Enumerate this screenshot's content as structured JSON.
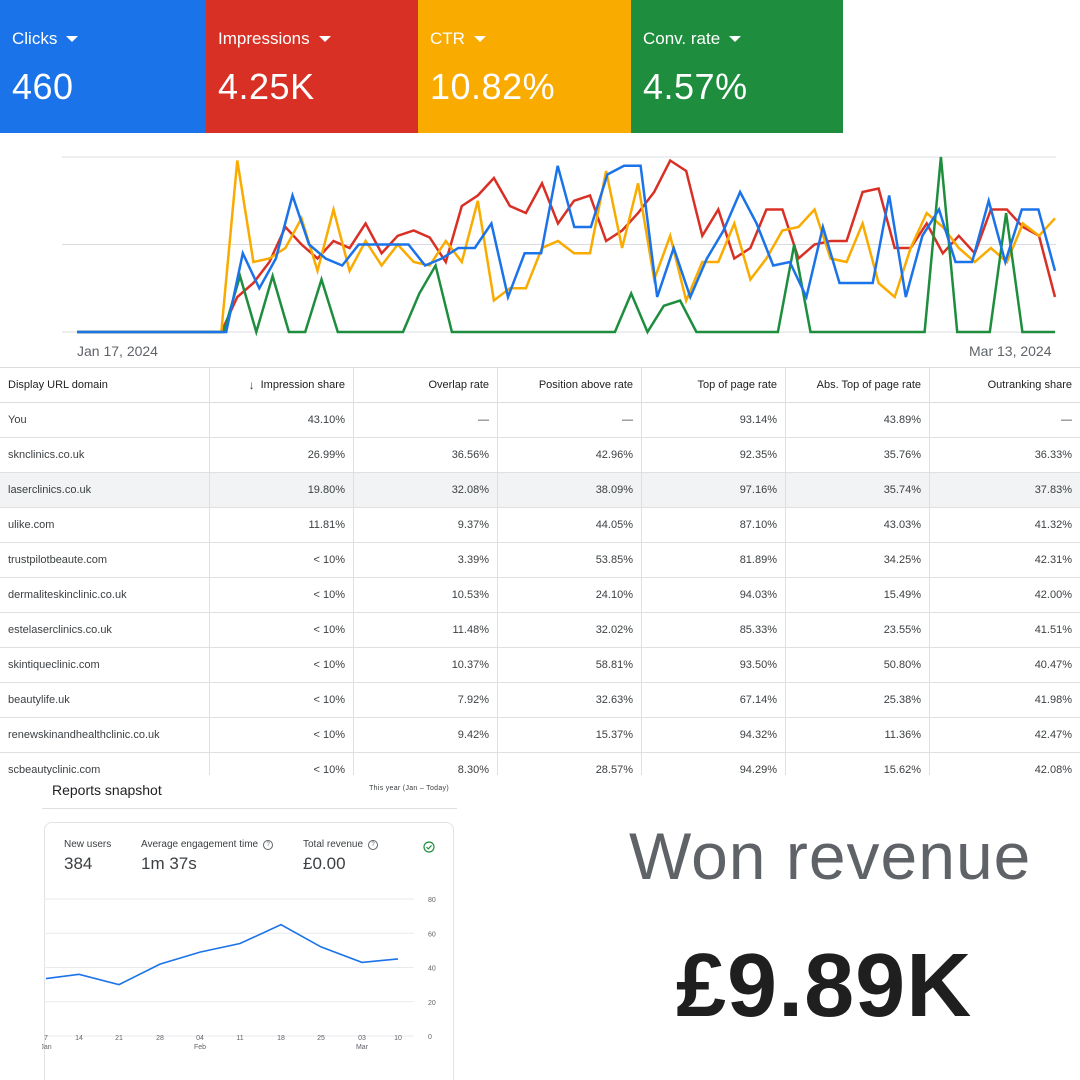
{
  "metrics": [
    {
      "label": "Clicks",
      "value": "460",
      "color": "#1a73e8"
    },
    {
      "label": "Impressions",
      "value": "4.25K",
      "color": "#d93025"
    },
    {
      "label": "CTR",
      "value": "10.82%",
      "color": "#f9ab00"
    },
    {
      "label": "Conv. rate",
      "value": "4.57%",
      "color": "#1e8e3e"
    }
  ],
  "main_chart": {
    "x_start_label": "Jan 17, 2024",
    "x_end_label": "Mar 13, 2024"
  },
  "chart_data": [
    {
      "type": "line",
      "x_start": "Jan 17, 2024",
      "x_end": "Mar 13, 2024",
      "grid": true,
      "ylim": [
        0,
        100
      ],
      "series": [
        {
          "name": "Clicks",
          "color": "#1a73e8",
          "values": [
            0,
            0,
            0,
            0,
            0,
            0,
            0,
            0,
            0,
            0,
            45,
            25,
            42,
            78,
            50,
            42,
            38,
            50,
            50,
            50,
            50,
            38,
            42,
            48,
            48,
            62,
            20,
            45,
            45,
            95,
            60,
            60,
            90,
            95,
            95,
            20,
            48,
            20,
            42,
            58,
            80,
            62,
            38,
            40,
            20,
            60,
            28,
            28,
            28,
            78,
            20,
            55,
            70,
            40,
            40,
            75,
            40,
            70,
            70,
            35
          ]
        },
        {
          "name": "Impressions",
          "color": "#d93025",
          "values": [
            0,
            0,
            0,
            0,
            0,
            0,
            0,
            0,
            0,
            0,
            20,
            28,
            40,
            60,
            50,
            42,
            52,
            48,
            62,
            45,
            55,
            58,
            54,
            40,
            72,
            78,
            88,
            72,
            68,
            85,
            62,
            75,
            78,
            52,
            58,
            68,
            80,
            98,
            92,
            55,
            70,
            42,
            48,
            70,
            70,
            42,
            50,
            52,
            52,
            80,
            82,
            48,
            48,
            62,
            45,
            55,
            45,
            70,
            70,
            60,
            55,
            20
          ]
        },
        {
          "name": "CTR",
          "color": "#f9ab00",
          "values": [
            0,
            0,
            0,
            0,
            0,
            0,
            0,
            0,
            0,
            0,
            98,
            40,
            42,
            48,
            65,
            35,
            70,
            35,
            52,
            38,
            50,
            40,
            38,
            52,
            40,
            75,
            18,
            25,
            25,
            48,
            52,
            45,
            45,
            92,
            48,
            85,
            30,
            55,
            18,
            40,
            40,
            62,
            30,
            42,
            58,
            60,
            70,
            42,
            40,
            62,
            28,
            20,
            48,
            68,
            60,
            48,
            40,
            48,
            40,
            62,
            55,
            65
          ]
        },
        {
          "name": "Conv. rate",
          "color": "#1e8e3e",
          "values": [
            0,
            0,
            0,
            0,
            0,
            0,
            0,
            0,
            0,
            0,
            32,
            0,
            32,
            0,
            0,
            30,
            0,
            0,
            0,
            0,
            0,
            22,
            38,
            0,
            0,
            0,
            0,
            0,
            0,
            0,
            0,
            0,
            0,
            0,
            22,
            0,
            15,
            18,
            0,
            0,
            0,
            0,
            0,
            0,
            50,
            0,
            0,
            0,
            0,
            0,
            0,
            0,
            0,
            100,
            0,
            0,
            0,
            68,
            0,
            0,
            0
          ]
        }
      ]
    },
    {
      "type": "line",
      "categories": [
        "7",
        "14",
        "21",
        "28",
        "04",
        "11",
        "18",
        "25",
        "03",
        "10"
      ],
      "category_sublabels": {
        "0": "Jan",
        "4": "Feb",
        "8": "Mar"
      },
      "y_ticks": [
        "80",
        "60",
        "40",
        "20",
        "0"
      ],
      "ylim": [
        0,
        80
      ],
      "grid": true,
      "series": [
        {
          "color": "#1a73e8",
          "values": [
            33.5,
            36,
            30,
            42,
            49,
            54,
            65,
            52,
            43,
            45
          ]
        }
      ]
    }
  ],
  "table": {
    "columns": [
      "Display URL domain",
      "Impression share",
      "Overlap rate",
      "Position above rate",
      "Top of page rate",
      "Abs. Top of page rate",
      "Outranking share"
    ],
    "sort_icon": "↓",
    "rows": [
      [
        "You",
        "43.10%",
        "—",
        "—",
        "93.14%",
        "43.89%",
        "—"
      ],
      [
        "sknclinics.co.uk",
        "26.99%",
        "36.56%",
        "42.96%",
        "92.35%",
        "35.76%",
        "36.33%"
      ],
      [
        "laserclinics.co.uk",
        "19.80%",
        "32.08%",
        "38.09%",
        "97.16%",
        "35.74%",
        "37.83%"
      ],
      [
        "ulike.com",
        "11.81%",
        "9.37%",
        "44.05%",
        "87.10%",
        "43.03%",
        "41.32%"
      ],
      [
        "trustpilotbeaute.com",
        "< 10%",
        "3.39%",
        "53.85%",
        "81.89%",
        "34.25%",
        "42.31%"
      ],
      [
        "dermaliteskinclinic.co.uk",
        "< 10%",
        "10.53%",
        "24.10%",
        "94.03%",
        "15.49%",
        "42.00%"
      ],
      [
        "estelaserclinics.co.uk",
        "< 10%",
        "11.48%",
        "32.02%",
        "85.33%",
        "23.55%",
        "41.51%"
      ],
      [
        "skintiqueclinic.com",
        "< 10%",
        "10.37%",
        "58.81%",
        "93.50%",
        "50.80%",
        "40.47%"
      ],
      [
        "beautylife.uk",
        "< 10%",
        "7.92%",
        "32.63%",
        "67.14%",
        "25.38%",
        "41.98%"
      ],
      [
        "renewskinandhealthclinic.co.uk",
        "< 10%",
        "9.42%",
        "15.37%",
        "94.32%",
        "11.36%",
        "42.47%"
      ],
      [
        "scbeautyclinic.com",
        "< 10%",
        "8.30%",
        "28.57%",
        "94.29%",
        "15.62%",
        "42.08%"
      ]
    ]
  },
  "snapshot": {
    "title": "Reports snapshot",
    "range": "This year (Jan – Today)",
    "metrics": [
      {
        "label": "New users",
        "value": "384"
      },
      {
        "label": "Average engagement time",
        "value": "1m 37s"
      },
      {
        "label": "Total revenue",
        "value": "£0.00"
      }
    ]
  },
  "won": {
    "title": "Won revenue",
    "value": "£9.89K"
  }
}
